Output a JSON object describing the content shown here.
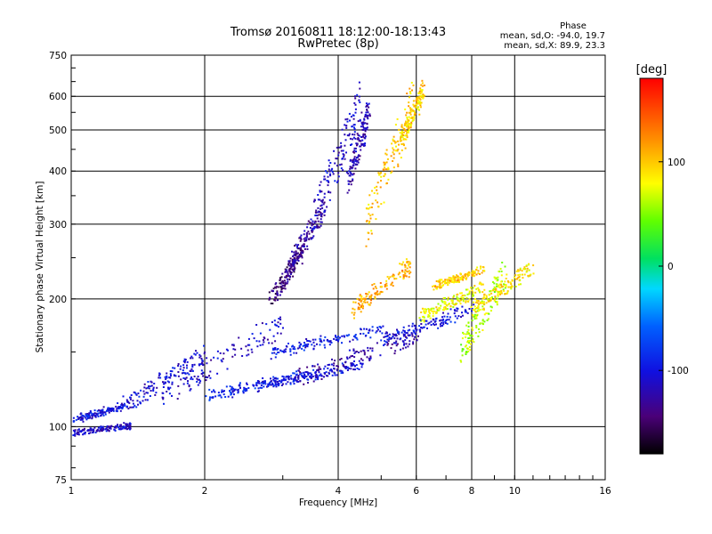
{
  "chart_data": {
    "type": "scatter",
    "title": "Tromsø 20160811 18:12:00-18:13:43",
    "subtitle": "RwPretec (8p)",
    "xlabel": "Frequency [MHz]",
    "ylabel": "Stationary phase Virtual Height [km]",
    "x_scale": "log",
    "y_scale": "log",
    "xlim": [
      1,
      16
    ],
    "ylim": [
      75,
      750
    ],
    "x_ticks": [
      1,
      2,
      4,
      6,
      8,
      10,
      16
    ],
    "x_tick_labels": [
      "1",
      "2",
      "4",
      "6",
      "8",
      "10",
      "16"
    ],
    "y_ticks": [
      75,
      100,
      200,
      300,
      400,
      500,
      600,
      750
    ],
    "y_tick_labels": [
      "75",
      "100",
      "200",
      "300",
      "400",
      "500",
      "600",
      "750"
    ],
    "grid": true,
    "phase_stats": {
      "heading": "Phase",
      "o_mode": "mean, sd,O:  -94.0, 19.7",
      "x_mode": "mean, sd,X:  89.9, 23.3"
    },
    "colorbar": {
      "label": "[deg]",
      "range": [
        -180,
        180
      ],
      "ticks": [
        100,
        0,
        -100
      ],
      "tick_labels": [
        "100",
        "0",
        "-100"
      ]
    },
    "traces": [
      {
        "f": [
          1.0,
          1.3
        ],
        "h": [
          104,
          112
        ],
        "phase": -100
      },
      {
        "f": [
          1.0,
          1.35
        ],
        "h": [
          97,
          101
        ],
        "phase": -110
      },
      {
        "f": [
          1.3,
          2.0
        ],
        "h": [
          112,
          148
        ],
        "phase": -105
      },
      {
        "f": [
          1.6,
          3.0
        ],
        "h": [
          120,
          175
        ],
        "phase": -110
      },
      {
        "f": [
          2.0,
          3.5
        ],
        "h": [
          118,
          135
        ],
        "phase": -90
      },
      {
        "f": [
          2.6,
          4.5
        ],
        "h": [
          125,
          140
        ],
        "phase": -100
      },
      {
        "f": [
          2.8,
          5.0
        ],
        "h": [
          150,
          170
        ],
        "phase": -95
      },
      {
        "f": [
          3.2,
          6.0
        ],
        "h": [
          130,
          165
        ],
        "phase": -120
      },
      {
        "f": [
          2.8,
          3.3
        ],
        "h": [
          200,
          260
        ],
        "phase": -140
      },
      {
        "f": [
          3.1,
          3.7
        ],
        "h": [
          240,
          330
        ],
        "phase": -130
      },
      {
        "f": [
          3.5,
          4.5
        ],
        "h": [
          300,
          600
        ],
        "phase": -110
      },
      {
        "f": [
          4.2,
          4.7
        ],
        "h": [
          380,
          560
        ],
        "phase": -120
      },
      {
        "f": [
          4.3,
          5.8
        ],
        "h": [
          190,
          240
        ],
        "phase": 110
      },
      {
        "f": [
          4.6,
          5.9
        ],
        "h": [
          300,
          590
        ],
        "phase": 100
      },
      {
        "f": [
          5.5,
          6.2
        ],
        "h": [
          470,
          620
        ],
        "phase": 95
      },
      {
        "f": [
          6.0,
          8.5
        ],
        "h": [
          180,
          215
        ],
        "phase": 80
      },
      {
        "f": [
          5.0,
          8.0
        ],
        "h": [
          160,
          190
        ],
        "phase": -100
      },
      {
        "f": [
          6.5,
          8.5
        ],
        "h": [
          215,
          235
        ],
        "phase": 100
      },
      {
        "f": [
          7.5,
          9.5
        ],
        "h": [
          150,
          230
        ],
        "phase": 60
      },
      {
        "f": [
          8.0,
          11.0
        ],
        "h": [
          190,
          240
        ],
        "phase": 90
      }
    ]
  }
}
